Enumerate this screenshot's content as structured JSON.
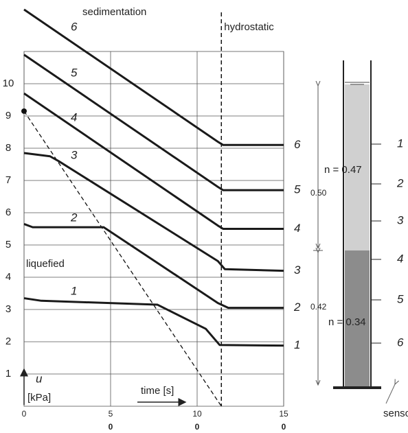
{
  "chart_data": {
    "type": "line",
    "annotations": {
      "top": "sedimentation",
      "state": "liquefied",
      "y_symbol": "u",
      "y_unit": "[kPa]",
      "x_label": "time [s]"
    },
    "xlim": [
      0,
      150
    ],
    "ylim": [
      0,
      12.4
    ],
    "grid_ylim": [
      0,
      11
    ],
    "xticks": [
      0,
      {
        "value": 50,
        "label": "50"
      },
      {
        "value": 100,
        "label": "100"
      },
      {
        "value": 150,
        "label": "150"
      }
    ],
    "yticks": [
      1,
      2,
      3,
      4,
      5,
      6,
      7,
      8,
      9,
      10
    ],
    "grid": true,
    "hydrostatic": {
      "x": 114,
      "label": "hydrostatic"
    },
    "reference_line": {
      "x": [
        0,
        114
      ],
      "values": [
        9.15,
        0
      ]
    },
    "series": [
      {
        "name": "1",
        "color": "#1a1a1a",
        "x": [
          0,
          10,
          77,
          105,
          113,
          150
        ],
        "values": [
          3.35,
          3.27,
          3.15,
          2.4,
          1.9,
          1.88
        ]
      },
      {
        "name": "2",
        "color": "#1a1a1a",
        "x": [
          0,
          5,
          46,
          112,
          118,
          150
        ],
        "values": [
          5.65,
          5.55,
          5.55,
          3.2,
          3.05,
          3.05
        ]
      },
      {
        "name": "3",
        "color": "#1a1a1a",
        "x": [
          0,
          15,
          20,
          112,
          116,
          150
        ],
        "values": [
          7.85,
          7.75,
          7.6,
          4.5,
          4.25,
          4.2
        ]
      },
      {
        "name": "4",
        "color": "#1a1a1a",
        "x": [
          0,
          112,
          115,
          150
        ],
        "values": [
          9.7,
          5.6,
          5.5,
          5.5
        ]
      },
      {
        "name": "5",
        "color": "#1a1a1a",
        "x": [
          0,
          112,
          115,
          150
        ],
        "values": [
          10.9,
          6.8,
          6.7,
          6.7
        ]
      },
      {
        "name": "6",
        "color": "#1a1a1a",
        "x": [
          0,
          112,
          115,
          150
        ],
        "values": [
          12.3,
          8.2,
          8.1,
          8.1
        ]
      }
    ]
  },
  "column": {
    "upper_height": "0.50",
    "lower_height": "0.42",
    "upper_porosity": "n = 0.47",
    "lower_porosity": "n = 0.34",
    "sensors": [
      "1",
      "2",
      "3",
      "4",
      "5",
      "6"
    ],
    "sensors_label": "sensors"
  }
}
